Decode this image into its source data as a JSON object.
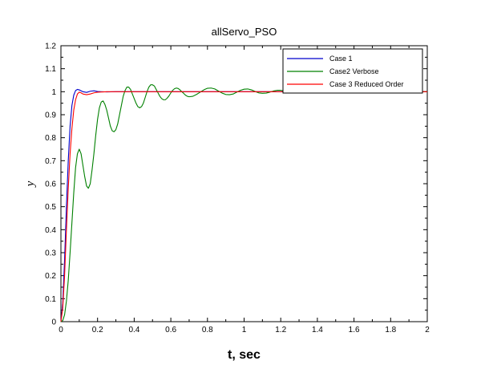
{
  "chart_data": {
    "type": "line",
    "title": "allServo_PSO",
    "xlabel": "t, sec",
    "ylabel": "y",
    "xlim": [
      0,
      2
    ],
    "ylim": [
      0,
      1.2
    ],
    "x_ticks": [
      "0",
      "0.2",
      "0.4",
      "0.6",
      "0.8",
      "1",
      "1.2",
      "1.4",
      "1.6",
      "1.8",
      "2"
    ],
    "y_ticks": [
      "0",
      "0.1",
      "0.2",
      "0.3",
      "0.4",
      "0.5",
      "0.6",
      "0.7",
      "0.8",
      "0.9",
      "1",
      "1.1",
      "1.2"
    ],
    "grid": false,
    "legend_position": "top-right",
    "series": [
      {
        "name": "Case 1",
        "color": "#0000cc",
        "x": [
          0,
          0.01,
          0.02,
          0.03,
          0.04,
          0.05,
          0.06,
          0.07,
          0.08,
          0.09,
          0.1,
          0.12,
          0.14,
          0.16,
          0.18,
          0.2,
          0.25,
          0.3,
          0.4,
          0.6,
          1.0,
          1.5,
          2.0
        ],
        "y": [
          0,
          0.08,
          0.27,
          0.5,
          0.7,
          0.85,
          0.94,
          0.985,
          1.005,
          1.01,
          1.008,
          1.0,
          0.997,
          1.002,
          1.004,
          1.001,
          0.999,
          1.0,
          1.0,
          1.0,
          1.0,
          1.0,
          1.0
        ]
      },
      {
        "name": "Case2 Verbose",
        "color": "#008000",
        "x": [
          0,
          0.01,
          0.02,
          0.03,
          0.04,
          0.05,
          0.06,
          0.07,
          0.08,
          0.09,
          0.1,
          0.11,
          0.12,
          0.13,
          0.14,
          0.15,
          0.16,
          0.17,
          0.18,
          0.19,
          0.2,
          0.21,
          0.22,
          0.23,
          0.24,
          0.25,
          0.26,
          0.27,
          0.28,
          0.29,
          0.3,
          0.31,
          0.32,
          0.33,
          0.34,
          0.35,
          0.36,
          0.37,
          0.38,
          0.39,
          0.4,
          0.41,
          0.42,
          0.43,
          0.44,
          0.45,
          0.46,
          0.47,
          0.48,
          0.49,
          0.5,
          0.51,
          0.52,
          0.53,
          0.54,
          0.55,
          0.56,
          0.57,
          0.58,
          0.59,
          0.6,
          0.61,
          0.62,
          0.63,
          0.64,
          0.65,
          0.66,
          0.67,
          0.68,
          0.69,
          0.7,
          0.72,
          0.74,
          0.76,
          0.78,
          0.8,
          0.82,
          0.84,
          0.86,
          0.88,
          0.9,
          0.92,
          0.94,
          0.96,
          0.98,
          1.0,
          1.02,
          1.04,
          1.06,
          1.08,
          1.1,
          1.12,
          1.14,
          1.16,
          1.18,
          1.2,
          1.22,
          1.24,
          1.26,
          1.28,
          1.3,
          1.35,
          1.4,
          1.5,
          1.6,
          1.7,
          1.8,
          1.9,
          2.0
        ],
        "y": [
          0,
          0.005,
          0.03,
          0.09,
          0.18,
          0.3,
          0.43,
          0.56,
          0.67,
          0.73,
          0.75,
          0.73,
          0.68,
          0.63,
          0.59,
          0.58,
          0.6,
          0.66,
          0.73,
          0.81,
          0.88,
          0.93,
          0.955,
          0.96,
          0.945,
          0.92,
          0.885,
          0.85,
          0.83,
          0.826,
          0.835,
          0.86,
          0.9,
          0.94,
          0.98,
          1.005,
          1.02,
          1.02,
          1.01,
          0.99,
          0.97,
          0.95,
          0.935,
          0.93,
          0.935,
          0.95,
          0.975,
          1.0,
          1.02,
          1.03,
          1.03,
          1.025,
          1.01,
          0.995,
          0.98,
          0.97,
          0.965,
          0.965,
          0.972,
          0.982,
          0.995,
          1.006,
          1.013,
          1.016,
          1.014,
          1.008,
          1.0,
          0.993,
          0.985,
          0.98,
          0.978,
          0.98,
          0.988,
          0.998,
          1.008,
          1.015,
          1.016,
          1.012,
          1.003,
          0.994,
          0.988,
          0.987,
          0.99,
          0.998,
          1.006,
          1.011,
          1.012,
          1.008,
          1.001,
          0.995,
          0.993,
          0.994,
          0.998,
          1.003,
          1.006,
          1.006,
          1.003,
          0.999,
          0.997,
          0.997,
          0.999,
          1.002,
          1.001,
          0.999,
          1.0,
          1.0,
          1.0,
          1.0,
          1.0
        ]
      },
      {
        "name": "Case 3 Reduced Order",
        "color": "#ff0000",
        "x": [
          0,
          0.01,
          0.02,
          0.03,
          0.04,
          0.05,
          0.06,
          0.07,
          0.08,
          0.09,
          0.1,
          0.11,
          0.12,
          0.14,
          0.16,
          0.18,
          0.2,
          0.25,
          0.3,
          0.4,
          0.6,
          1.0,
          1.5,
          2.0
        ],
        "y": [
          0,
          0.06,
          0.2,
          0.4,
          0.58,
          0.73,
          0.84,
          0.92,
          0.965,
          0.99,
          0.998,
          0.995,
          0.99,
          0.987,
          0.99,
          0.995,
          0.998,
          1.0,
          1.0,
          1.0,
          1.0,
          1.0,
          1.0,
          1.0
        ]
      }
    ]
  }
}
